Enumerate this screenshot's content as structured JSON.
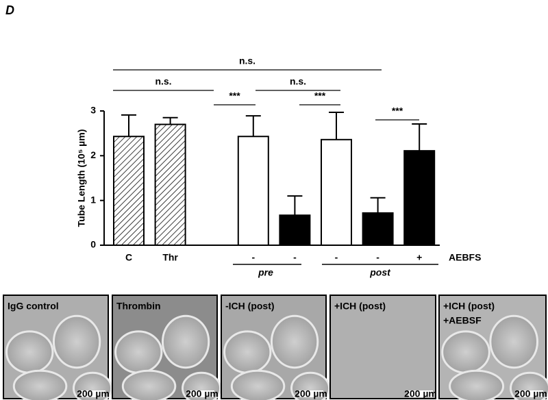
{
  "panel_label": "D",
  "chart_data": {
    "type": "bar",
    "ylabel": "Tube Length (10⁵ µm)",
    "categories": [
      "C",
      "Thr",
      null,
      "-",
      "-",
      "-",
      "-",
      "+"
    ],
    "values": [
      2.43,
      2.7,
      null,
      2.43,
      0.67,
      2.36,
      0.72,
      2.11
    ],
    "errors": [
      0.48,
      0.15,
      null,
      0.46,
      0.43,
      0.61,
      0.34,
      0.6
    ],
    "fills": [
      "hatch",
      "hatch",
      null,
      "white",
      "black",
      "white",
      "black",
      "black"
    ],
    "ylim": [
      0,
      3
    ],
    "yticks": [
      0,
      1,
      2,
      3
    ],
    "row_label": "AEBFS",
    "groups": [
      "pre",
      "post"
    ],
    "annotations": [
      "n.s.",
      "n.s.",
      "***",
      "n.s.",
      "***",
      "***"
    ]
  },
  "panels": [
    {
      "label": [
        "IgG control"
      ],
      "scale": "200 µm"
    },
    {
      "label": [
        "Thrombin"
      ],
      "scale": "200 µm"
    },
    {
      "label": [
        "-ICH (post)"
      ],
      "scale": "200 µm"
    },
    {
      "label": [
        "+ICH (post)"
      ],
      "scale": "200 µm"
    },
    {
      "label": [
        "+ICH (post)",
        "+AEBSF"
      ],
      "scale": "200 µm"
    }
  ]
}
